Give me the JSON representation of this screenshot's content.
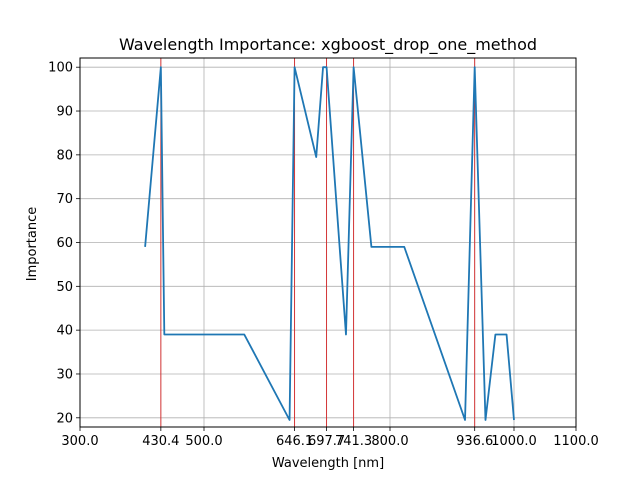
{
  "chart_data": {
    "type": "line",
    "title": "Wavelength Importance: xgboost_drop_one_method",
    "xlabel": "Wavelength [nm]",
    "ylabel": "Importance",
    "xlim": [
      300.0,
      1100.0
    ],
    "ylim": [
      17.9,
      102.1
    ],
    "grid": true,
    "x_ticks": [
      {
        "value": 300.0,
        "label": "300.0"
      },
      {
        "value": 430.4,
        "label": "430.4"
      },
      {
        "value": 500.0,
        "label": "500.0"
      },
      {
        "value": 646.1,
        "label": "646.1"
      },
      {
        "value": 697.7,
        "label": "697.7"
      },
      {
        "value": 741.3,
        "label": "741.3"
      },
      {
        "value": 800.0,
        "label": "800.0"
      },
      {
        "value": 936.6,
        "label": "936.6"
      },
      {
        "value": 1000.0,
        "label": "1000.0"
      },
      {
        "value": 1100.0,
        "label": "1100.0"
      }
    ],
    "y_ticks": [
      {
        "value": 20,
        "label": "20"
      },
      {
        "value": 30,
        "label": "30"
      },
      {
        "value": 40,
        "label": "40"
      },
      {
        "value": 50,
        "label": "50"
      },
      {
        "value": 60,
        "label": "60"
      },
      {
        "value": 70,
        "label": "70"
      },
      {
        "value": 80,
        "label": "80"
      },
      {
        "value": 90,
        "label": "90"
      },
      {
        "value": 100,
        "label": "100"
      }
    ],
    "series": [
      {
        "color": "#1f77b4",
        "points": [
          {
            "x": 405,
            "y": 59
          },
          {
            "x": 430.4,
            "y": 100
          },
          {
            "x": 436,
            "y": 39
          },
          {
            "x": 565,
            "y": 39
          },
          {
            "x": 638,
            "y": 19.5
          },
          {
            "x": 646.1,
            "y": 100
          },
          {
            "x": 681,
            "y": 79.5
          },
          {
            "x": 692,
            "y": 100
          },
          {
            "x": 697.7,
            "y": 100
          },
          {
            "x": 729,
            "y": 39
          },
          {
            "x": 741.3,
            "y": 100
          },
          {
            "x": 770,
            "y": 59
          },
          {
            "x": 823,
            "y": 59
          },
          {
            "x": 921,
            "y": 19.5
          },
          {
            "x": 936.6,
            "y": 100
          },
          {
            "x": 954,
            "y": 19.5
          },
          {
            "x": 970,
            "y": 39
          },
          {
            "x": 988,
            "y": 39
          },
          {
            "x": 1000,
            "y": 19.5
          }
        ]
      }
    ],
    "highlight_lines": {
      "color": "#d62728",
      "x": [
        430.4,
        646.1,
        697.7,
        741.3,
        936.6
      ]
    }
  }
}
